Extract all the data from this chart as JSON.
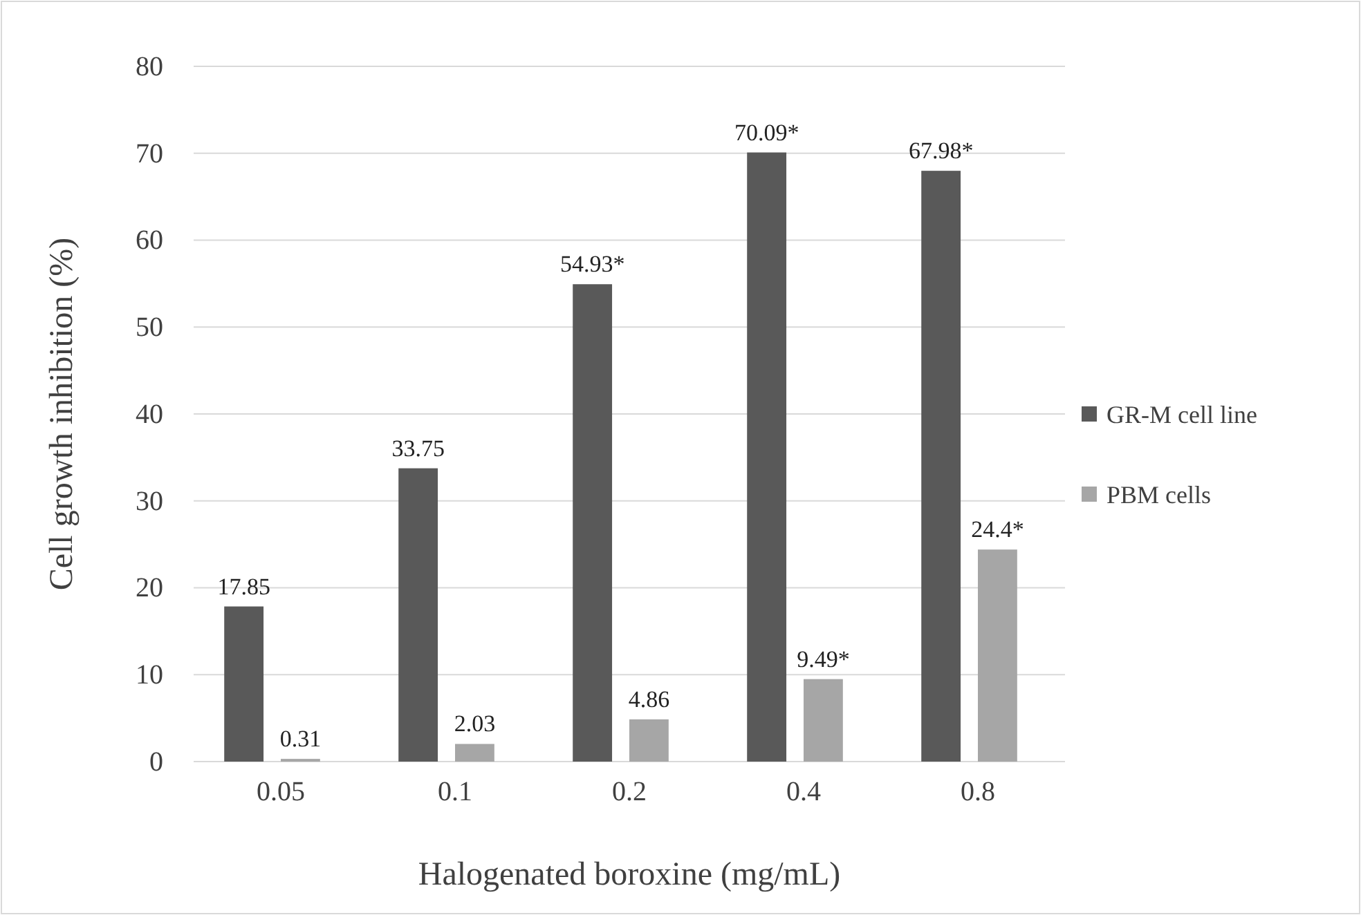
{
  "chart_data": {
    "type": "bar",
    "xlabel": "Halogenated boroxine (mg/mL)",
    "ylabel": "Cell growth inhibition (%)",
    "categories": [
      "0.05",
      "0.1",
      "0.2",
      "0.4",
      "0.8"
    ],
    "series": [
      {
        "name": "GR-M cell line",
        "color": "#595959",
        "values": [
          17.85,
          33.75,
          54.93,
          70.09,
          67.98
        ],
        "value_labels": [
          "17.85",
          "33.75",
          "54.93*",
          "70.09*",
          "67.98*"
        ]
      },
      {
        "name": "PBM cells",
        "color": "#a6a6a6",
        "values": [
          0.31,
          2.03,
          4.86,
          9.49,
          24.4
        ],
        "value_labels": [
          "0.31",
          "2.03",
          "4.86",
          "9.49*",
          "24.4*"
        ]
      }
    ],
    "ylim": [
      0,
      80
    ],
    "yticks": [
      0,
      10,
      20,
      30,
      40,
      50,
      60,
      70,
      80
    ],
    "grid": "y",
    "legend": "right"
  }
}
